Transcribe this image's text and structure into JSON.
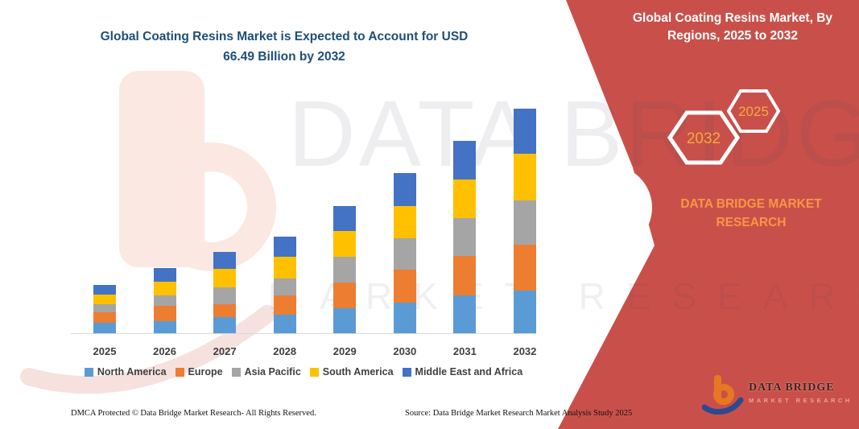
{
  "page": {
    "title_lines": [
      "Global Coating Resins Market is Expected to Account for USD",
      "66.49 Billion by 2032"
    ],
    "title_color": "#1F4E79"
  },
  "band": {
    "color": "#C9504A",
    "title": "Global Coating Resins Market, By Regions, 2025 to 2032",
    "hexagons": [
      {
        "label": "2032"
      },
      {
        "label": "2025"
      }
    ],
    "hexagon_label_color": "#F5A93C",
    "brand_text": "DATA BRIDGE MARKET RESEARCH",
    "brand_color": "#F79646",
    "logo": {
      "title": "DATA BRIDGE",
      "subtitle": "MARKET RESEARCH"
    }
  },
  "watermark": {
    "big_text": "DATA BRIDGE",
    "sub_text": "MARKET RESEARCH"
  },
  "chart_data": {
    "type": "bar",
    "stacked": true,
    "title": "",
    "xlabel": "",
    "ylabel": "",
    "unit": "USD Billion",
    "categories": [
      "2025",
      "2026",
      "2027",
      "2028",
      "2029",
      "2030",
      "2031",
      "2032"
    ],
    "series": [
      {
        "name": "North America",
        "color": "#5B9BD5",
        "values": [
          3.0,
          3.6,
          4.7,
          5.4,
          7.5,
          9.0,
          11.2,
          12.6
        ]
      },
      {
        "name": "Europe",
        "color": "#ED7D31",
        "values": [
          3.2,
          4.5,
          4.0,
          5.8,
          7.4,
          9.8,
          11.6,
          13.7
        ]
      },
      {
        "name": "Asia Pacific",
        "color": "#A5A5A5",
        "values": [
          2.4,
          3.1,
          4.8,
          5.0,
          7.8,
          9.3,
          11.2,
          13.1
        ]
      },
      {
        "name": "South America",
        "color": "#FFC000",
        "values": [
          2.8,
          4.1,
          5.6,
          6.4,
          7.5,
          9.4,
          11.6,
          13.8
        ]
      },
      {
        "name": "Middle East and Africa",
        "color": "#4472C4",
        "values": [
          3.0,
          3.9,
          4.9,
          6.0,
          7.5,
          9.8,
          11.3,
          13.29
        ]
      }
    ],
    "estimated_totals": [
      14.4,
      19.2,
      24.0,
      28.6,
      37.7,
      47.3,
      56.9,
      66.49
    ],
    "ylim": [
      0,
      70
    ],
    "grid": false,
    "legend_position": "bottom"
  },
  "footer": {
    "left": "DMCA Protected © Data Bridge Market Research-  All Rights Reserved.",
    "right": "Source: Data Bridge Market Research  Market Analysis Study 2025"
  }
}
